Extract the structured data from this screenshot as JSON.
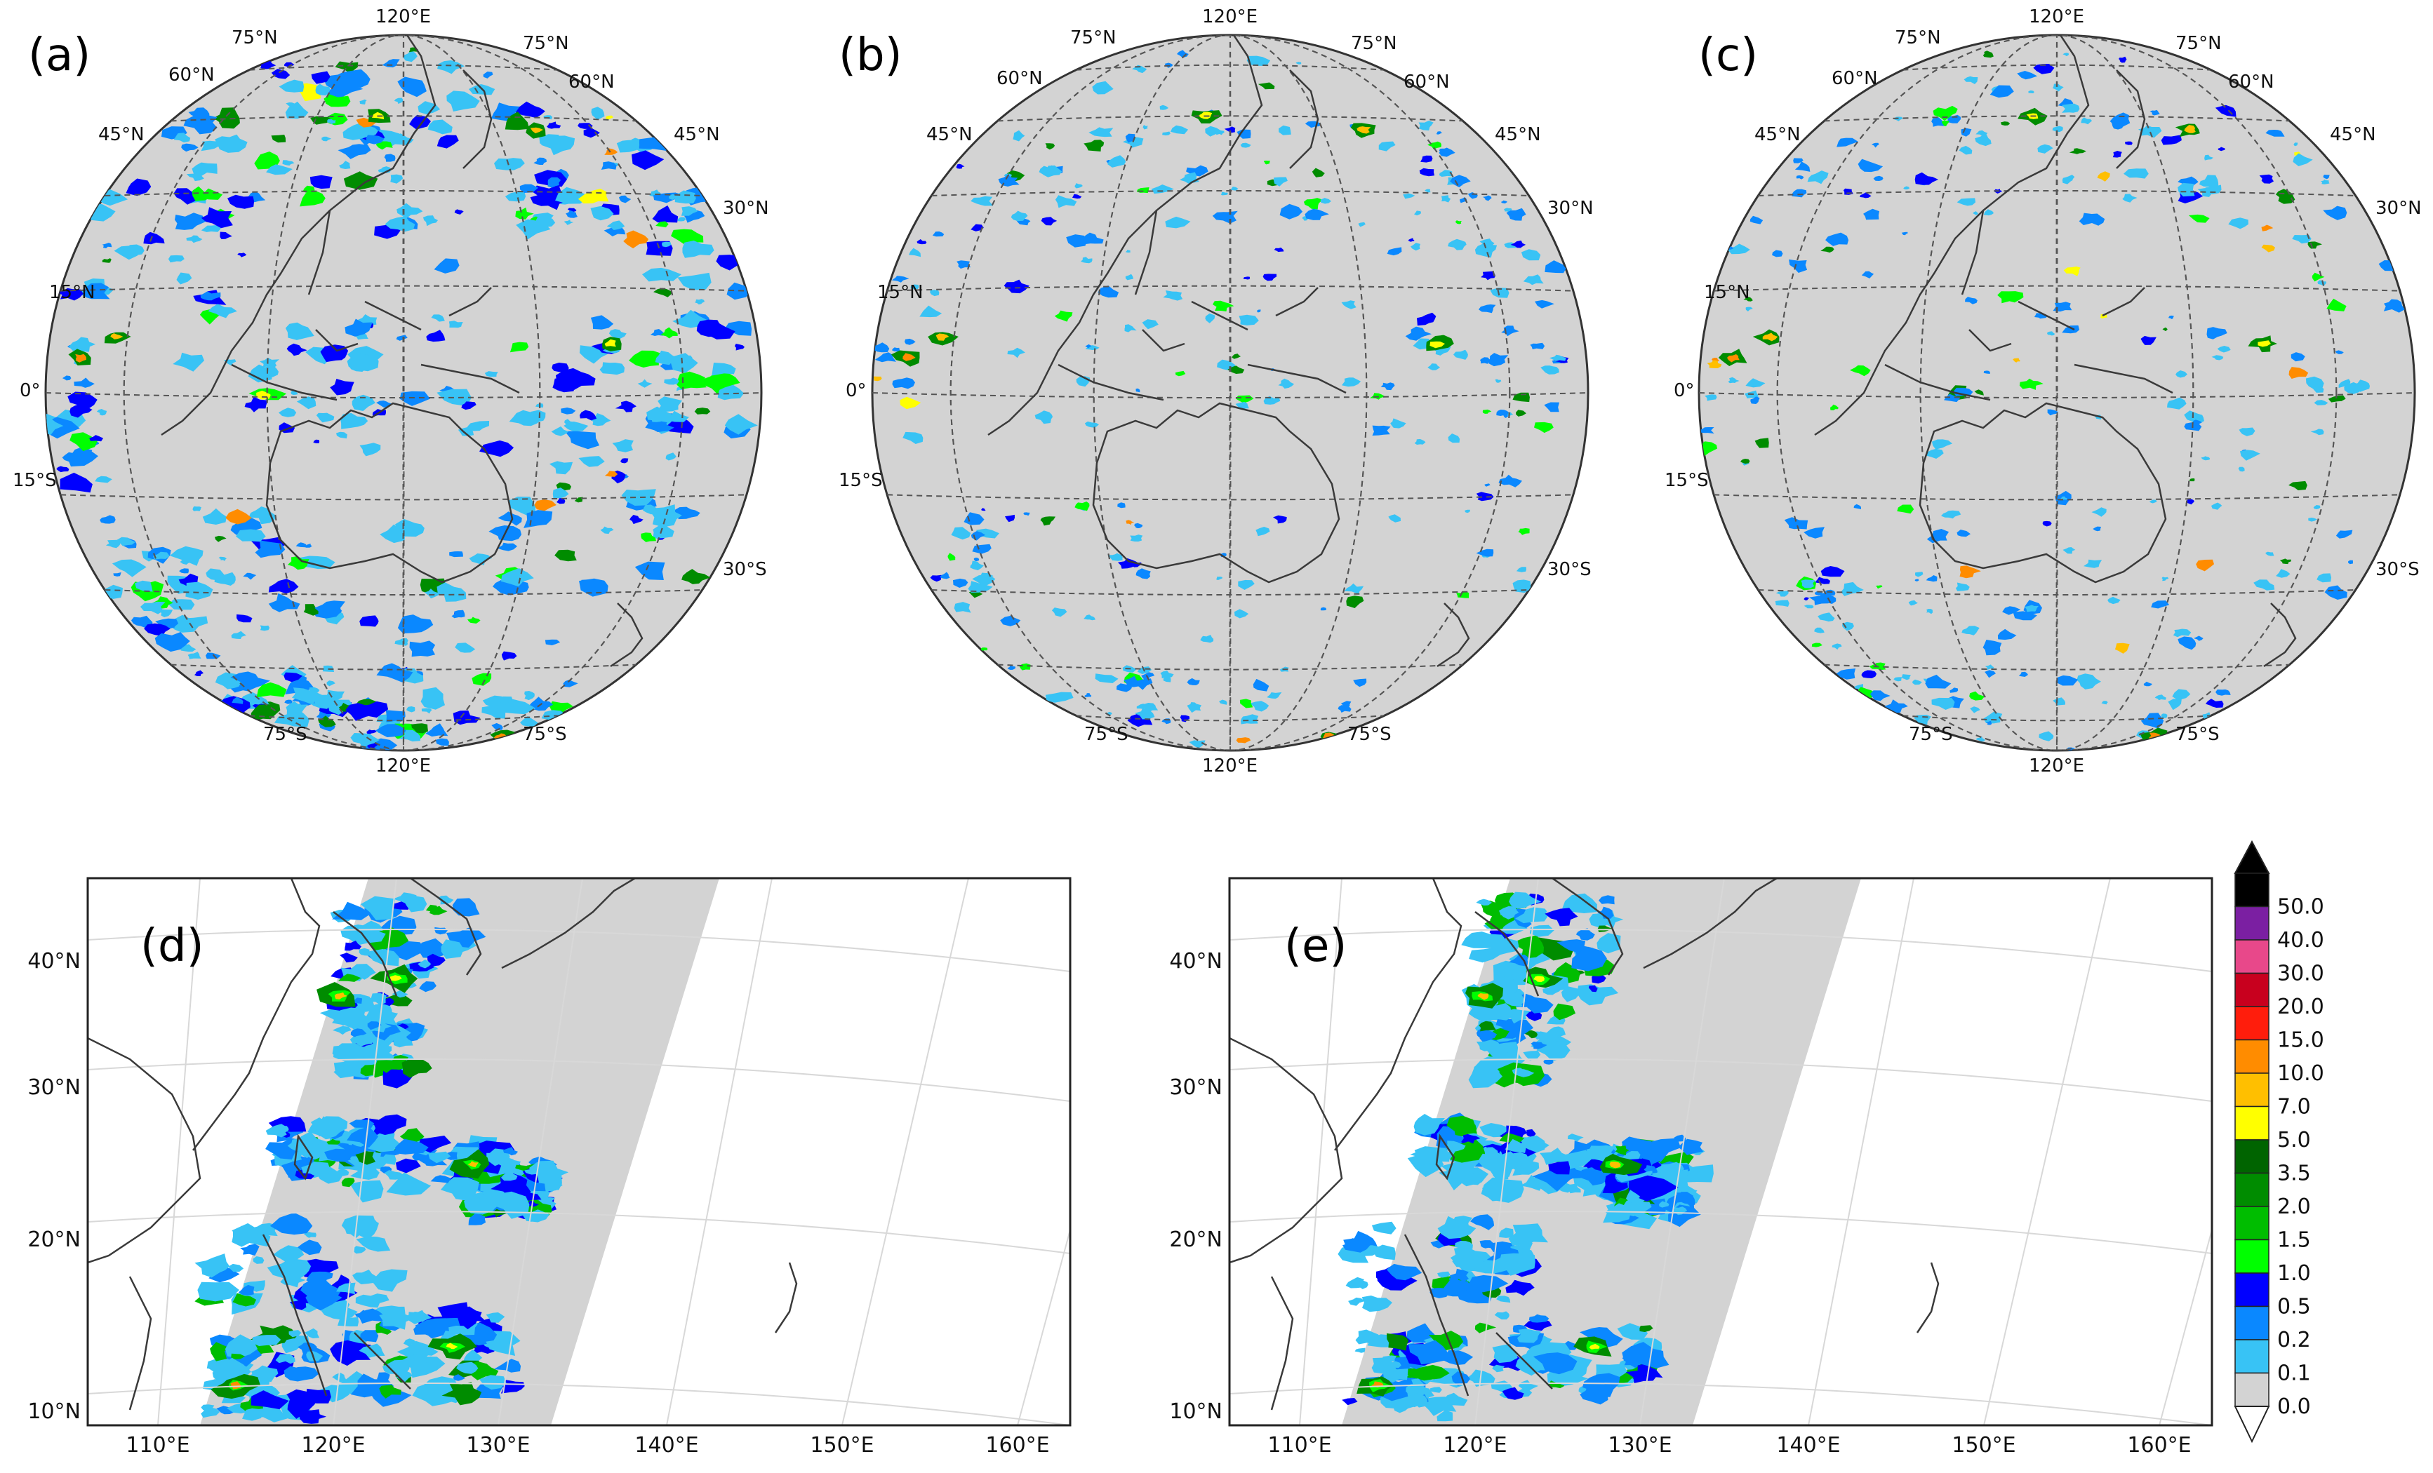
{
  "panels_globe": [
    {
      "label": "(a)",
      "precip_density": "high",
      "lat_labels_left": [
        "75°N",
        "60°N",
        "45°N",
        "15°N",
        "0°",
        "15°S",
        "75°S"
      ],
      "lat_labels_right": [
        "75°N",
        "60°N",
        "45°N",
        "30°N",
        "30°S",
        "75°S"
      ],
      "lon_labels": [
        "120°E",
        "120°E"
      ]
    },
    {
      "label": "(b)",
      "precip_density": "medium",
      "lat_labels_left": [
        "75°N",
        "60°N",
        "45°N",
        "15°N",
        "0°",
        "15°S",
        "75°S"
      ],
      "lat_labels_right": [
        "75°N",
        "60°N",
        "45°N",
        "30°N",
        "30°S",
        "75°S"
      ],
      "lon_labels": [
        "120°E",
        "120°E"
      ]
    },
    {
      "label": "(c)",
      "precip_density": "medium",
      "lat_labels_left": [
        "75°N",
        "60°N",
        "45°N",
        "15°N",
        "0°",
        "15°S",
        "75°S"
      ],
      "lat_labels_right": [
        "75°N",
        "60°N",
        "45°N",
        "30°N",
        "30°S",
        "75°S"
      ],
      "lon_labels": [
        "120°E",
        "120°E"
      ]
    }
  ],
  "panels_regional": [
    {
      "label": "(d)"
    },
    {
      "label": "(e)"
    }
  ],
  "regional_axes": {
    "lat_ticks": [
      "40°N",
      "30°N",
      "20°N",
      "10°N"
    ],
    "lon_ticks": [
      "110°E",
      "120°E",
      "130°E",
      "140°E",
      "150°E",
      "160°E"
    ]
  },
  "colorbar": {
    "levels": [
      {
        "label": "50.0",
        "color": "#000000"
      },
      {
        "label": "40.0",
        "color": "#7b1fa2"
      },
      {
        "label": "30.0",
        "color": "#e8488a"
      },
      {
        "label": "20.0",
        "color": "#c8001e"
      },
      {
        "label": "15.0",
        "color": "#ff1d0c"
      },
      {
        "label": "10.0",
        "color": "#ff8c00"
      },
      {
        "label": "7.0",
        "color": "#ffbf00"
      },
      {
        "label": "5.0",
        "color": "#ffff00"
      },
      {
        "label": "3.5",
        "color": "#006400"
      },
      {
        "label": "2.0",
        "color": "#008c00"
      },
      {
        "label": "1.5",
        "color": "#00bd00"
      },
      {
        "label": "1.0",
        "color": "#00ff00"
      },
      {
        "label": "0.5",
        "color": "#0000ff"
      },
      {
        "label": "0.2",
        "color": "#0a88ff"
      },
      {
        "label": "0.1",
        "color": "#38c3f5"
      },
      {
        "label": "0.0",
        "color": "#d3d3d3"
      }
    ],
    "under_color": "#ffffff",
    "over_color": "#000000"
  }
}
